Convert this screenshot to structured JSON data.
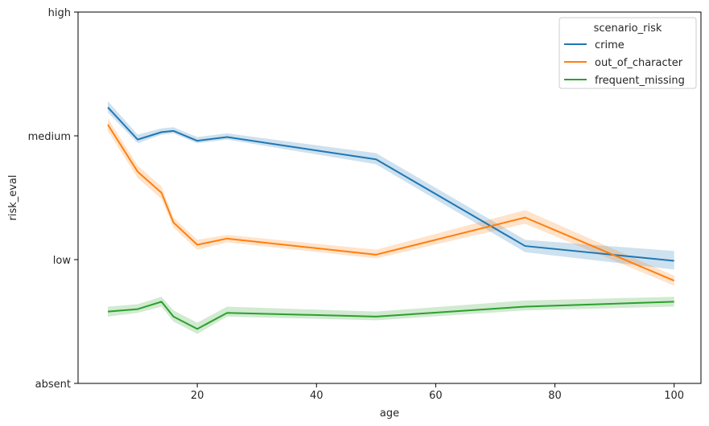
{
  "chart_data": {
    "type": "line",
    "xlabel": "age",
    "ylabel": "risk_eval",
    "xlim": [
      0,
      104.5
    ],
    "ylim": [
      0,
      3
    ],
    "x_ticks": [
      20,
      40,
      60,
      80,
      100
    ],
    "y_ticks": [
      0,
      1,
      2,
      3
    ],
    "y_tick_labels": [
      "absent",
      "low",
      "medium",
      "high"
    ],
    "grid": false,
    "legend": {
      "title": "scenario_risk",
      "placement": "top-right"
    },
    "series": [
      {
        "name": "crime",
        "color": "#1f77b4",
        "x": [
          5,
          10,
          14,
          16,
          20,
          25,
          50,
          75,
          100
        ],
        "y": [
          2.23,
          1.97,
          2.03,
          2.04,
          1.96,
          1.99,
          1.81,
          1.11,
          0.99
        ],
        "ci_low": [
          2.19,
          1.94,
          2.01,
          2.02,
          1.94,
          1.97,
          1.77,
          1.06,
          0.92
        ],
        "ci_high": [
          2.28,
          2.01,
          2.06,
          2.07,
          1.99,
          2.02,
          1.86,
          1.16,
          1.07
        ]
      },
      {
        "name": "out_of_character",
        "color": "#ff7f0e",
        "x": [
          5,
          10,
          14,
          16,
          20,
          25,
          50,
          75,
          100
        ],
        "y": [
          2.09,
          1.71,
          1.54,
          1.3,
          1.12,
          1.17,
          1.04,
          1.34,
          0.83
        ],
        "ci_low": [
          2.04,
          1.66,
          1.49,
          1.26,
          1.08,
          1.14,
          1.01,
          1.29,
          0.79
        ],
        "ci_high": [
          2.14,
          1.76,
          1.59,
          1.34,
          1.16,
          1.2,
          1.08,
          1.4,
          0.87
        ]
      },
      {
        "name": "frequent_missing",
        "color": "#2ca02c",
        "x": [
          5,
          10,
          14,
          16,
          20,
          25,
          50,
          75,
          100
        ],
        "y": [
          0.58,
          0.6,
          0.66,
          0.54,
          0.44,
          0.57,
          0.54,
          0.62,
          0.66
        ],
        "ci_low": [
          0.54,
          0.57,
          0.62,
          0.5,
          0.4,
          0.54,
          0.51,
          0.59,
          0.62
        ],
        "ci_high": [
          0.62,
          0.64,
          0.7,
          0.59,
          0.49,
          0.62,
          0.58,
          0.67,
          0.7
        ]
      }
    ]
  }
}
